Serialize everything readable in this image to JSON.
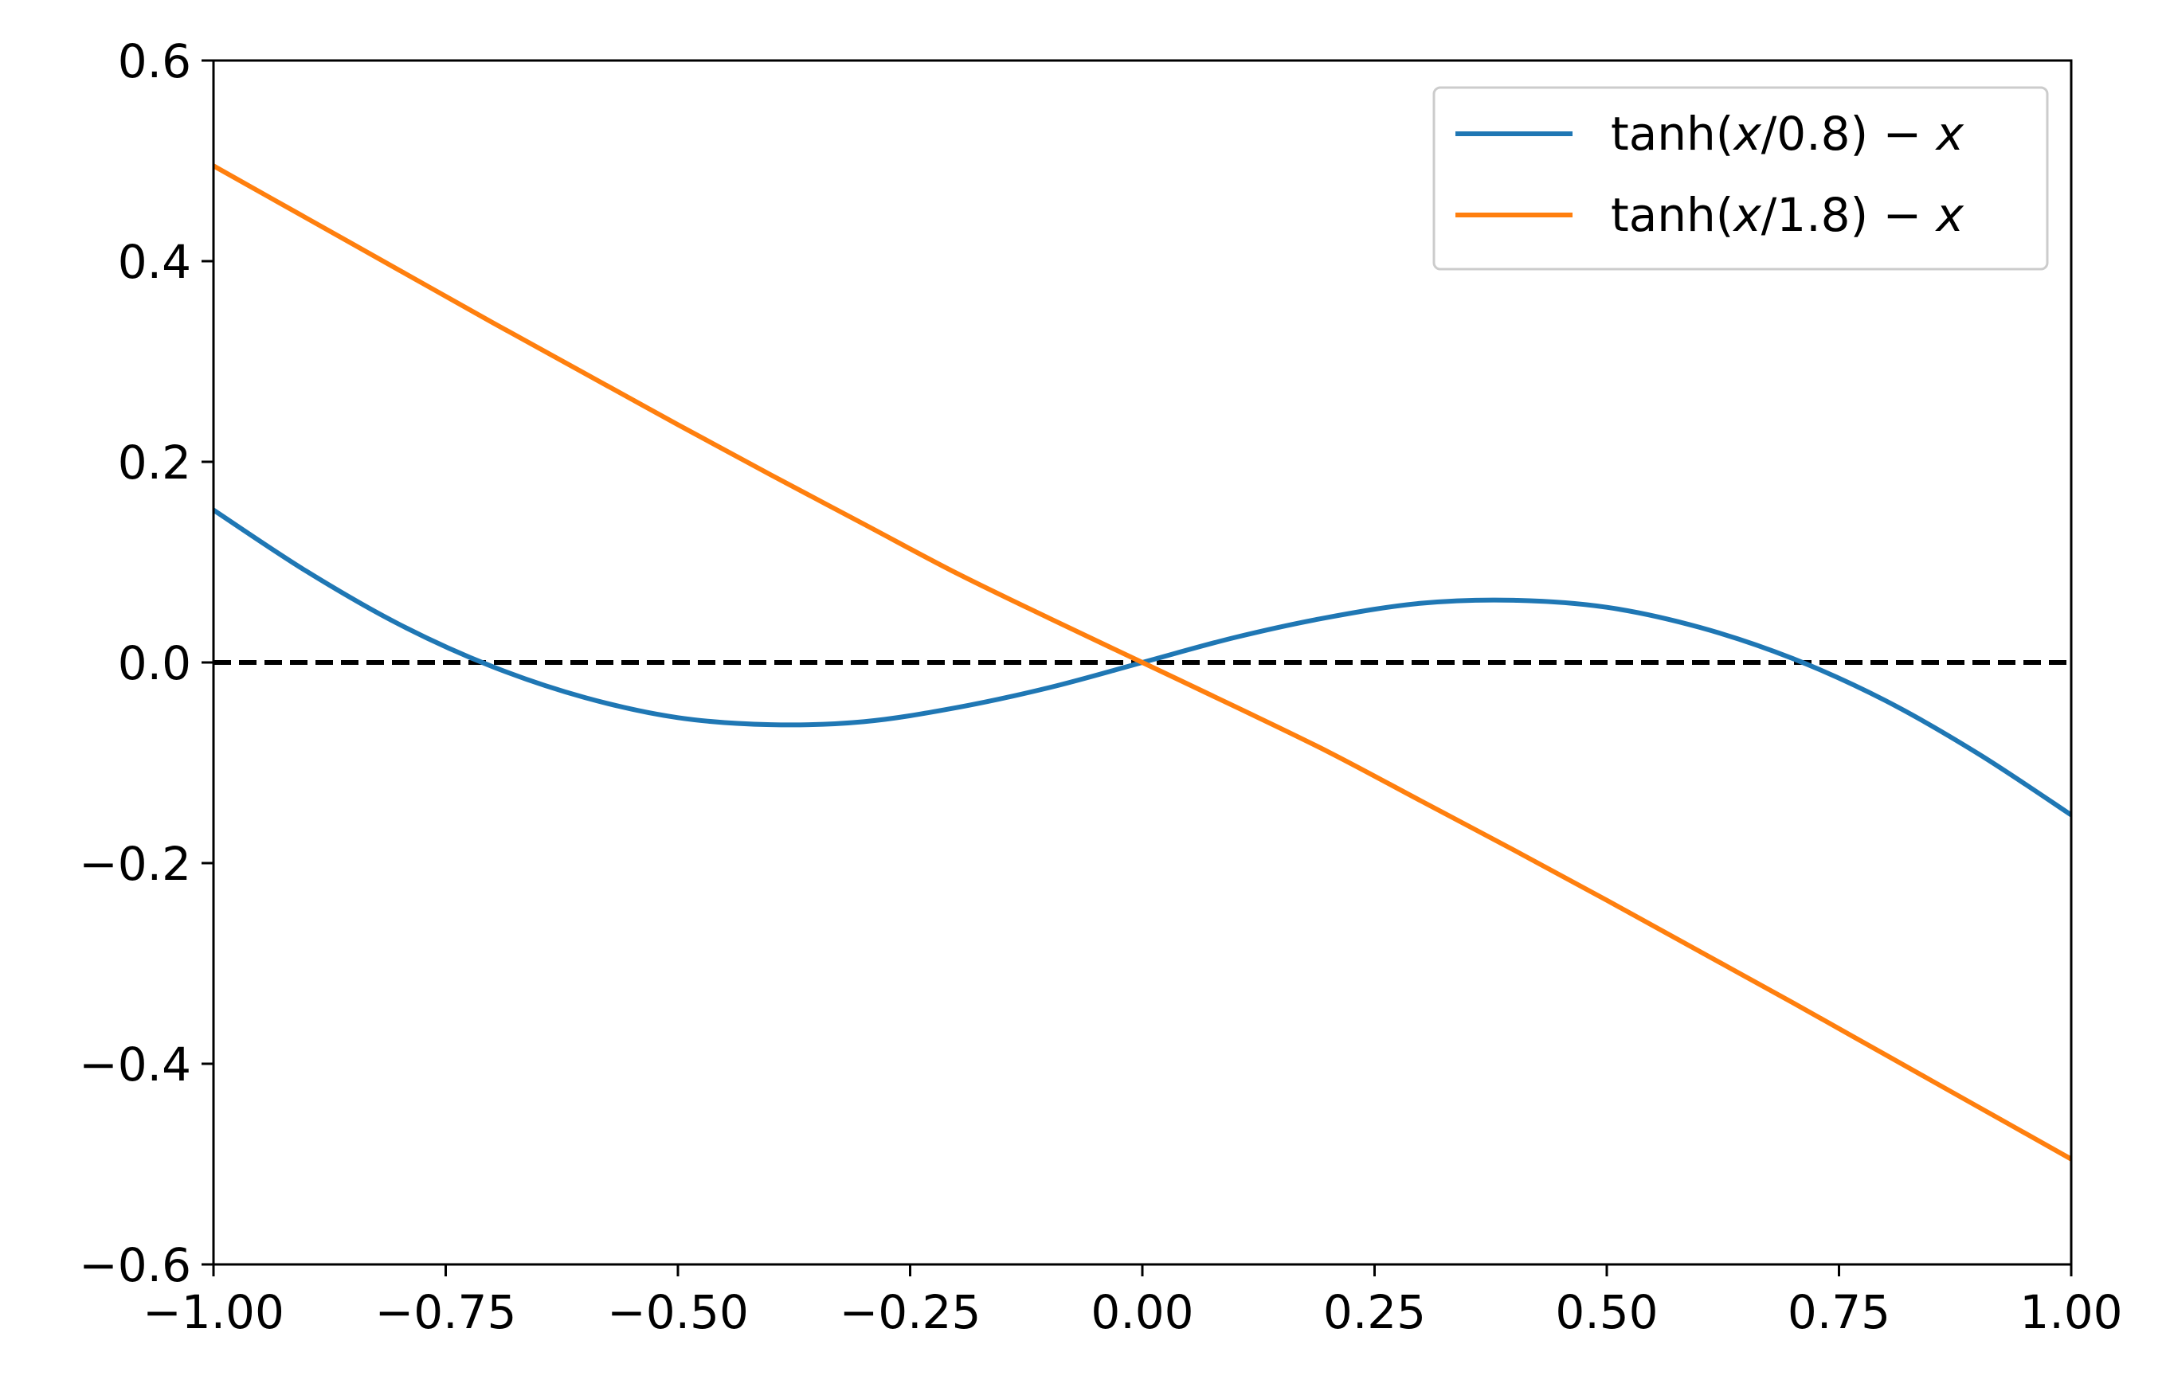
{
  "chart_data": {
    "type": "line",
    "title": "",
    "xlabel": "",
    "ylabel": "",
    "xlim": [
      -1.0,
      1.0
    ],
    "ylim": [
      -0.6,
      0.6
    ],
    "x_ticks": [
      -1.0,
      -0.75,
      -0.5,
      -0.25,
      0.0,
      0.25,
      0.5,
      0.75,
      1.0
    ],
    "x_tick_labels": [
      "−1.00",
      "−0.75",
      "−0.50",
      "−0.25",
      "0.00",
      "0.25",
      "0.50",
      "0.75",
      "1.00"
    ],
    "y_ticks": [
      -0.6,
      -0.4,
      -0.2,
      0.0,
      0.2,
      0.4,
      0.6
    ],
    "y_tick_labels": [
      "−0.6",
      "−0.4",
      "−0.2",
      "0.0",
      "0.2",
      "0.4",
      "0.6"
    ],
    "grid": false,
    "legend_position": "top-right",
    "x": [
      -1.0,
      -0.9,
      -0.8,
      -0.7,
      -0.6,
      -0.5,
      -0.4,
      -0.3,
      -0.2,
      -0.1,
      0.0,
      0.1,
      0.2,
      0.3,
      0.4,
      0.5,
      0.6,
      0.7,
      0.8,
      0.9,
      1.0
    ],
    "series": [
      {
        "name": "tanh(x/0.8) − x",
        "legend_prefix": "tanh(",
        "legend_italic": "x",
        "legend_mid": "/0.8) − ",
        "legend_italic2": "x",
        "color": "#1f77b4",
        "values": [
          0.152,
          0.091,
          0.038,
          -0.004,
          -0.035,
          -0.055,
          -0.062,
          -0.059,
          -0.045,
          -0.025,
          0.0,
          0.025,
          0.045,
          0.059,
          0.062,
          0.055,
          0.035,
          0.004,
          -0.038,
          -0.091,
          -0.152
        ]
      },
      {
        "name": "tanh(x/1.8) − x",
        "legend_prefix": "tanh(",
        "legend_italic": "x",
        "legend_mid": "/1.8) − ",
        "legend_italic2": "x",
        "color": "#ff7f0e",
        "values": [
          0.495,
          0.443,
          0.391,
          0.339,
          0.288,
          0.237,
          0.187,
          0.138,
          0.089,
          0.044,
          0.0,
          -0.044,
          -0.089,
          -0.138,
          -0.187,
          -0.237,
          -0.288,
          -0.339,
          -0.391,
          -0.443,
          -0.495
        ]
      }
    ],
    "reference_line": {
      "y": 0.0,
      "style": "dashed",
      "color": "#000000"
    }
  }
}
